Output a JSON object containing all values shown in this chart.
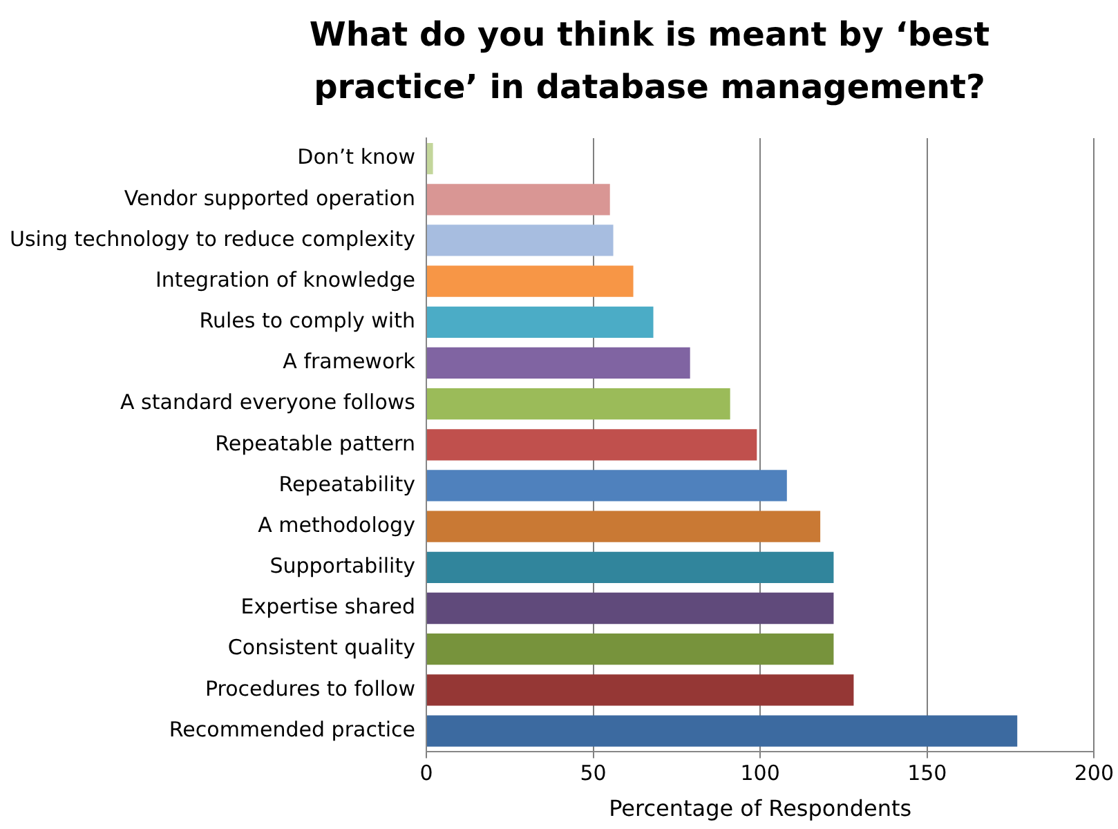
{
  "chart_data": {
    "type": "bar",
    "orientation": "horizontal",
    "title": "What do you think is meant by ‘best practice’ in database management?",
    "xlabel": "Percentage of Respondents",
    "categories": [
      "Don’t know",
      "Vendor supported operation",
      "Using technology to reduce complexity",
      "Integration of knowledge",
      "Rules to comply with",
      "A framework",
      "A standard everyone follows",
      "Repeatable pattern",
      "Repeatability",
      "A methodology",
      "Supportability",
      "Expertise shared",
      "Consistent quality",
      "Procedures to follow",
      "Recommended practice"
    ],
    "values": [
      2,
      55,
      56,
      62,
      68,
      79,
      91,
      99,
      108,
      118,
      122,
      122,
      122,
      128,
      177
    ],
    "colors": [
      "#c3d69b",
      "#d99694",
      "#a7bde0",
      "#f79646",
      "#4bacc6",
      "#8064a2",
      "#9bbb59",
      "#c0504d",
      "#4f81bd",
      "#c97934",
      "#31859c",
      "#604a7b",
      "#77933c",
      "#953735",
      "#3c6aa0"
    ],
    "xlim": [
      0,
      200
    ],
    "xticks": [
      0,
      50,
      100,
      150,
      200
    ],
    "grid": "x",
    "legend": false
  }
}
